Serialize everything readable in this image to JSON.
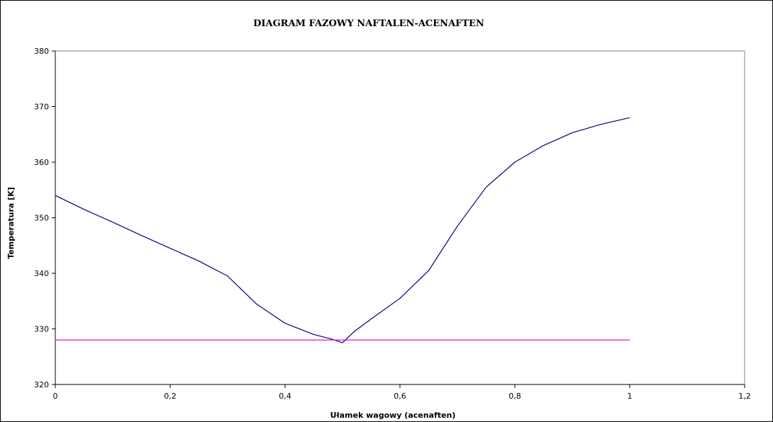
{
  "chart_data": {
    "type": "line",
    "title": "DIAGRAM FAZOWY NAFTALEN-ACENAFTEN",
    "xlabel": "Ułamek wagowy (acenaften)",
    "ylabel": "Temperatura  [K]",
    "xlim": [
      0,
      1.2
    ],
    "ylim": [
      320,
      380
    ],
    "xticks": [
      "0",
      "0,2",
      "0,4",
      "0,6",
      "0,8",
      "1",
      "1,2"
    ],
    "yticks": [
      "320",
      "330",
      "340",
      "350",
      "360",
      "370",
      "380"
    ],
    "grid": false,
    "legend": "none",
    "series": [
      {
        "color": "#000080",
        "x": [
          0,
          0.05,
          0.1,
          0.15,
          0.2,
          0.25,
          0.3,
          0.35,
          0.4,
          0.45,
          0.48,
          0.5,
          0.52,
          0.55,
          0.6,
          0.65,
          0.7,
          0.75,
          0.8,
          0.85,
          0.9,
          0.95,
          1.0
        ],
        "y": [
          354.0,
          351.5,
          349.2,
          346.8,
          344.5,
          342.2,
          339.5,
          334.5,
          331.0,
          329.0,
          328.2,
          327.5,
          329.5,
          331.8,
          335.5,
          340.5,
          348.5,
          355.5,
          360.0,
          363.0,
          365.3,
          366.8,
          368.0
        ]
      },
      {
        "color": "#CC00CC",
        "x": [
          0,
          1.0
        ],
        "y": [
          328,
          328
        ]
      }
    ]
  }
}
